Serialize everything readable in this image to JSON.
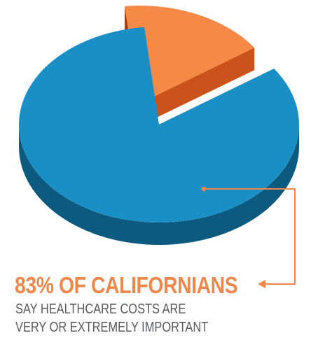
{
  "chart_data": {
    "type": "pie",
    "title": "",
    "slices": [
      {
        "label": "Say healthcare costs are very or extremely important",
        "value": 83
      },
      {
        "label": "",
        "value": 17
      }
    ]
  },
  "callout": {
    "headline": "83% OF CALIFORNIANS",
    "line1": "SAY HEALTHCARE COSTS ARE",
    "line2": "VERY OR EXTREMELY IMPORTANT"
  },
  "colors": {
    "main_top": "#1a8fc6",
    "main_side": "#0d5a80",
    "main_side_dark": "#094766",
    "small_top": "#f58a47",
    "small_side": "#a8390e",
    "small_side_light": "#c9531a",
    "accent": "#f0874a",
    "subtext": "#58595b"
  }
}
